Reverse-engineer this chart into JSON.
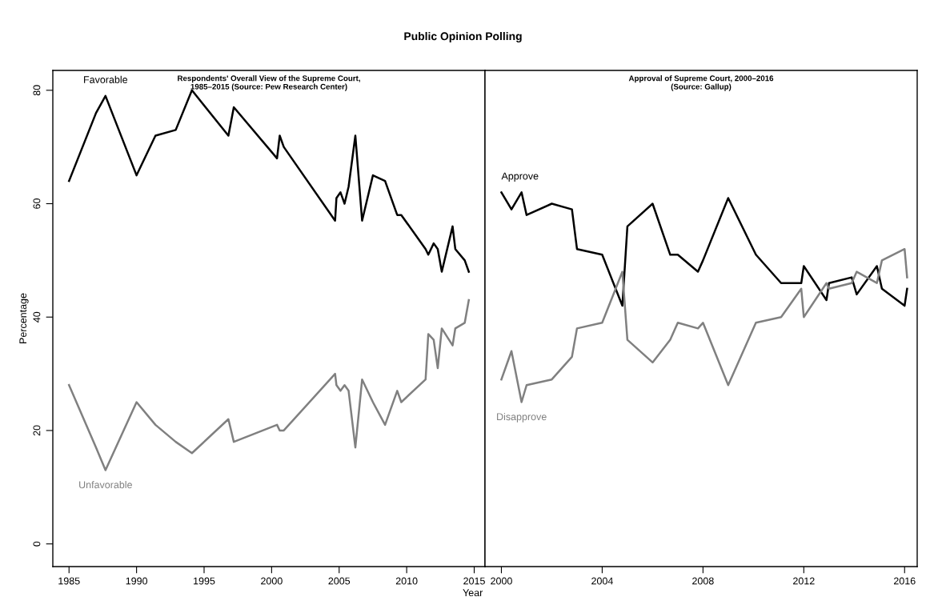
{
  "chart_data": [
    {
      "type": "line",
      "title": "Respondents' Overall View of the Supreme Court,\n1985–2015 (Source: Pew Research Center)",
      "xlabel": "Year",
      "ylabel": "Percentage",
      "annotations": [
        "Public Opinion Polling"
      ],
      "x": [
        1985.0,
        1987.0,
        1987.7,
        1990.0,
        1991.4,
        1992.9,
        1994.1,
        1996.8,
        1997.2,
        2000.4,
        2000.6,
        2000.9,
        2004.7,
        2004.8,
        2005.1,
        2005.4,
        2005.7,
        2006.2,
        2006.7,
        2007.5,
        2008.4,
        2009.3,
        2009.6,
        2011.4,
        2011.6,
        2012.0,
        2012.3,
        2012.6,
        2013.4,
        2013.6,
        2014.3,
        2014.6
      ],
      "series": [
        {
          "name": "Favorable",
          "color": "#000000",
          "values": [
            64,
            76,
            79,
            65,
            72,
            73,
            80,
            72,
            77,
            68,
            72,
            70,
            57,
            61,
            62,
            60,
            63,
            72,
            57,
            65,
            64,
            58,
            58,
            52,
            51,
            53,
            52,
            48,
            56,
            52,
            50,
            48
          ]
        },
        {
          "name": "Unfavorable",
          "color": "#808080",
          "values": [
            28,
            17,
            13,
            25,
            21,
            18,
            16,
            22,
            18,
            21,
            20,
            20,
            30,
            28,
            27,
            28,
            27,
            17,
            29,
            25,
            21,
            27,
            25,
            29,
            37,
            36,
            31,
            38,
            35,
            38,
            39,
            43
          ]
        }
      ],
      "xlim": [
        1983.8,
        2015.8
      ],
      "xticks": [
        1985,
        1990,
        1995,
        2000,
        2005,
        2010,
        2015
      ],
      "ylim": [
        -4,
        83.5
      ],
      "yticks": [
        0,
        20,
        40,
        60,
        80
      ],
      "grid": false,
      "legend": false
    },
    {
      "type": "line",
      "title": "Approval of Supreme Court, 2000–2016\n(Source: Gallup)",
      "x": [
        2000.0,
        2000.4,
        2000.8,
        2001.0,
        2002.0,
        2002.8,
        2003.0,
        2004.0,
        2004.8,
        2005.0,
        2006.0,
        2006.7,
        2007.0,
        2007.8,
        2008.0,
        2009.0,
        2010.1,
        2011.1,
        2011.9,
        2012.0,
        2012.9,
        2013.0,
        2013.9,
        2014.1,
        2014.9,
        2015.1,
        2016.0,
        2016.1
      ],
      "series": [
        {
          "name": "Approve",
          "color": "#000000",
          "values": [
            62,
            59,
            62,
            58,
            60,
            59,
            52,
            51,
            42,
            56,
            60,
            51,
            51,
            48,
            50,
            61,
            51,
            46,
            46,
            49,
            43,
            46,
            47,
            44,
            49,
            45,
            42,
            45
          ]
        },
        {
          "name": "Disapprove",
          "color": "#808080",
          "values": [
            29,
            34,
            25,
            28,
            29,
            33,
            38,
            39,
            48,
            36,
            32,
            36,
            39,
            38,
            39,
            28,
            39,
            40,
            45,
            40,
            46,
            45,
            46,
            48,
            46,
            50,
            52,
            47
          ]
        }
      ],
      "xlim": [
        1999.35,
        2016.5
      ],
      "xticks": [
        2000,
        2004,
        2008,
        2012,
        2016
      ],
      "ylim": [
        -4,
        83.5
      ],
      "yticks": [
        0,
        20,
        40,
        60,
        80
      ],
      "tick_labels": "x",
      "grid": false,
      "legend": false
    }
  ]
}
